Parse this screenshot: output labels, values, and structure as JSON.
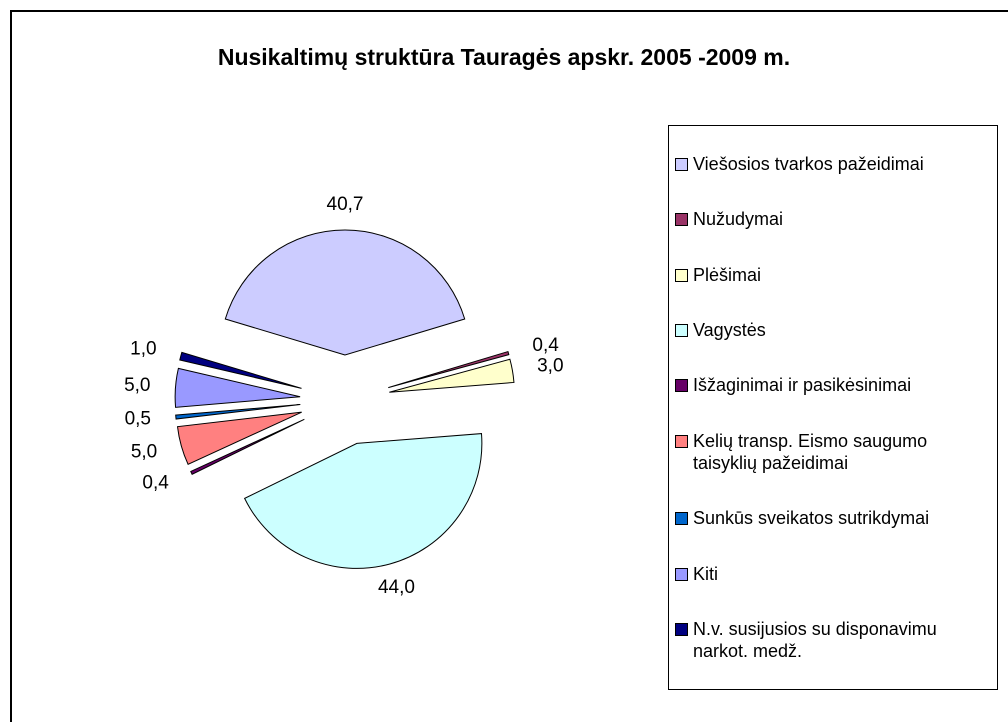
{
  "chart_data": {
    "type": "pie",
    "title": "Nusikaltimų struktūra Tauragės apskr. 2005 -2009 m.",
    "categories": [
      "Viešosios tvarkos pažeidimai",
      "Nužudymai",
      "Plėšimai",
      "Vagystės",
      "Išžaginimai ir pasikėsinimai",
      "Kelių transp. Eismo saugumo taisyklių pažeidimai",
      "Sunkūs sveikatos sutrikdymai",
      "Kiti",
      "N.v. susijusios su disponavimu narkot. medž."
    ],
    "values": [
      40.7,
      0.4,
      3.0,
      44.0,
      0.4,
      5.0,
      0.5,
      5.0,
      1.0
    ],
    "value_labels": [
      "40,7",
      "0,4",
      "3,0",
      "44,0",
      "0,4",
      "5,0",
      "0,5",
      "5,0",
      "1,0"
    ],
    "colors": [
      "#ccccff",
      "#993366",
      "#ffffcc",
      "#ccffff",
      "#660066",
      "#ff8080",
      "#0066cc",
      "#9999ff",
      "#000080"
    ],
    "legend": "right"
  }
}
